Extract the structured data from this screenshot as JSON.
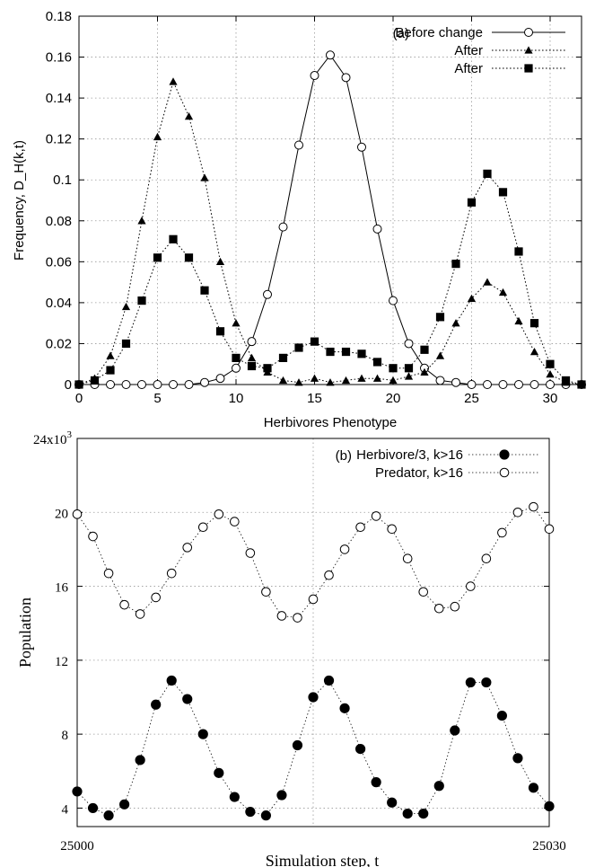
{
  "chart_data": [
    {
      "type": "line",
      "panel_label": "(a)",
      "xlabel": "Herbivores Phenotype",
      "ylabel": "Frequency, D_H(k,t)",
      "xlim": [
        0,
        32
      ],
      "ylim": [
        0,
        0.18
      ],
      "x_ticks": [
        "0",
        "5",
        "10",
        "15",
        "20",
        "25",
        "30"
      ],
      "y_ticks": [
        "0",
        "0.02",
        "0.04",
        "0.06",
        "0.08",
        "0.1",
        "0.12",
        "0.14",
        "0.16",
        "0.18"
      ],
      "grid": true,
      "legend_position": "top-right",
      "series": [
        {
          "name": "Before change",
          "marker": "open-circle",
          "line": "solid",
          "points": [
            [
              0,
              0
            ],
            [
              1,
              0
            ],
            [
              2,
              0
            ],
            [
              3,
              0
            ],
            [
              4,
              0
            ],
            [
              5,
              0
            ],
            [
              6,
              0
            ],
            [
              7,
              0
            ],
            [
              8,
              0.001
            ],
            [
              9,
              0.003
            ],
            [
              10,
              0.008
            ],
            [
              11,
              0.021
            ],
            [
              12,
              0.044
            ],
            [
              13,
              0.077
            ],
            [
              14,
              0.117
            ],
            [
              15,
              0.151
            ],
            [
              16,
              0.161
            ],
            [
              17,
              0.15
            ],
            [
              18,
              0.116
            ],
            [
              19,
              0.076
            ],
            [
              20,
              0.041
            ],
            [
              21,
              0.02
            ],
            [
              22,
              0.008
            ],
            [
              23,
              0.002
            ],
            [
              24,
              0.001
            ],
            [
              25,
              0
            ],
            [
              26,
              0
            ],
            [
              27,
              0
            ],
            [
              28,
              0
            ],
            [
              29,
              0
            ],
            [
              30,
              0
            ],
            [
              31,
              0
            ],
            [
              32,
              0
            ]
          ]
        },
        {
          "name": "After",
          "marker": "filled-triangle",
          "line": "dotted",
          "points": [
            [
              0,
              0
            ],
            [
              1,
              0.003
            ],
            [
              2,
              0.014
            ],
            [
              3,
              0.038
            ],
            [
              4,
              0.08
            ],
            [
              5,
              0.121
            ],
            [
              6,
              0.148
            ],
            [
              7,
              0.131
            ],
            [
              8,
              0.101
            ],
            [
              9,
              0.06
            ],
            [
              10,
              0.03
            ],
            [
              11,
              0.013
            ],
            [
              12,
              0.006
            ],
            [
              13,
              0.002
            ],
            [
              14,
              0.001
            ],
            [
              15,
              0.003
            ],
            [
              16,
              0.001
            ],
            [
              17,
              0.002
            ],
            [
              18,
              0.003
            ],
            [
              19,
              0.003
            ],
            [
              20,
              0.002
            ],
            [
              21,
              0.004
            ],
            [
              22,
              0.006
            ],
            [
              23,
              0.014
            ],
            [
              24,
              0.03
            ],
            [
              25,
              0.042
            ],
            [
              26,
              0.05
            ],
            [
              27,
              0.045
            ],
            [
              28,
              0.031
            ],
            [
              29,
              0.016
            ],
            [
              30,
              0.005
            ],
            [
              31,
              0.001
            ],
            [
              32,
              0
            ]
          ]
        },
        {
          "name": "After",
          "marker": "filled-square",
          "line": "dotted",
          "points": [
            [
              0,
              0
            ],
            [
              1,
              0.002
            ],
            [
              2,
              0.007
            ],
            [
              3,
              0.02
            ],
            [
              4,
              0.041
            ],
            [
              5,
              0.062
            ],
            [
              6,
              0.071
            ],
            [
              7,
              0.062
            ],
            [
              8,
              0.046
            ],
            [
              9,
              0.026
            ],
            [
              10,
              0.013
            ],
            [
              11,
              0.009
            ],
            [
              12,
              0.008
            ],
            [
              13,
              0.013
            ],
            [
              14,
              0.018
            ],
            [
              15,
              0.021
            ],
            [
              16,
              0.016
            ],
            [
              17,
              0.016
            ],
            [
              18,
              0.015
            ],
            [
              19,
              0.011
            ],
            [
              20,
              0.008
            ],
            [
              21,
              0.008
            ],
            [
              22,
              0.017
            ],
            [
              23,
              0.033
            ],
            [
              24,
              0.059
            ],
            [
              25,
              0.089
            ],
            [
              26,
              0.103
            ],
            [
              27,
              0.094
            ],
            [
              28,
              0.065
            ],
            [
              29,
              0.03
            ],
            [
              30,
              0.01
            ],
            [
              31,
              0.002
            ],
            [
              32,
              0
            ]
          ]
        }
      ]
    },
    {
      "type": "line",
      "panel_label": "(b)",
      "xlabel": "Simulation step, t",
      "ylabel": "Population",
      "xlim": [
        25000,
        25030
      ],
      "ylim": [
        3000,
        24000
      ],
      "x_ticks": [
        "25000",
        "25030"
      ],
      "y_ticks": [
        "4",
        "8",
        "12",
        "16",
        "20"
      ],
      "y_top_label": "24x10",
      "y_top_label_exp": "3",
      "grid": true,
      "legend_position": "top-right",
      "series": [
        {
          "name": "Herbivore/3, k>16",
          "marker": "filled-circle",
          "line": "dotted",
          "points": [
            [
              25000,
              4900
            ],
            [
              25001,
              4000
            ],
            [
              25002,
              3600
            ],
            [
              25003,
              4200
            ],
            [
              25004,
              6600
            ],
            [
              25005,
              9600
            ],
            [
              25006,
              10900
            ],
            [
              25007,
              9900
            ],
            [
              25008,
              8000
            ],
            [
              25009,
              5900
            ],
            [
              25010,
              4600
            ],
            [
              25011,
              3800
            ],
            [
              25012,
              3600
            ],
            [
              25013,
              4700
            ],
            [
              25014,
              7400
            ],
            [
              25015,
              10000
            ],
            [
              25016,
              10900
            ],
            [
              25017,
              9400
            ],
            [
              25018,
              7200
            ],
            [
              25019,
              5400
            ],
            [
              25020,
              4300
            ],
            [
              25021,
              3700
            ],
            [
              25022,
              3700
            ],
            [
              25023,
              5200
            ],
            [
              25024,
              8200
            ],
            [
              25025,
              10800
            ],
            [
              25026,
              10800
            ],
            [
              25027,
              9000
            ],
            [
              25028,
              6700
            ],
            [
              25029,
              5100
            ],
            [
              25030,
              4100
            ]
          ]
        },
        {
          "name": "Predator, k>16",
          "marker": "open-circle",
          "line": "dotted",
          "points": [
            [
              25000,
              19900
            ],
            [
              25001,
              18700
            ],
            [
              25002,
              16700
            ],
            [
              25003,
              15000
            ],
            [
              25004,
              14500
            ],
            [
              25005,
              15400
            ],
            [
              25006,
              16700
            ],
            [
              25007,
              18100
            ],
            [
              25008,
              19200
            ],
            [
              25009,
              19900
            ],
            [
              25010,
              19500
            ],
            [
              25011,
              17800
            ],
            [
              25012,
              15700
            ],
            [
              25013,
              14400
            ],
            [
              25014,
              14300
            ],
            [
              25015,
              15300
            ],
            [
              25016,
              16600
            ],
            [
              25017,
              18000
            ],
            [
              25018,
              19200
            ],
            [
              25019,
              19800
            ],
            [
              25020,
              19100
            ],
            [
              25021,
              17500
            ],
            [
              25022,
              15700
            ],
            [
              25023,
              14800
            ],
            [
              25024,
              14900
            ],
            [
              25025,
              16000
            ],
            [
              25026,
              17500
            ],
            [
              25027,
              18900
            ],
            [
              25028,
              20000
            ],
            [
              25029,
              20300
            ],
            [
              25030,
              19100
            ]
          ]
        }
      ]
    }
  ]
}
